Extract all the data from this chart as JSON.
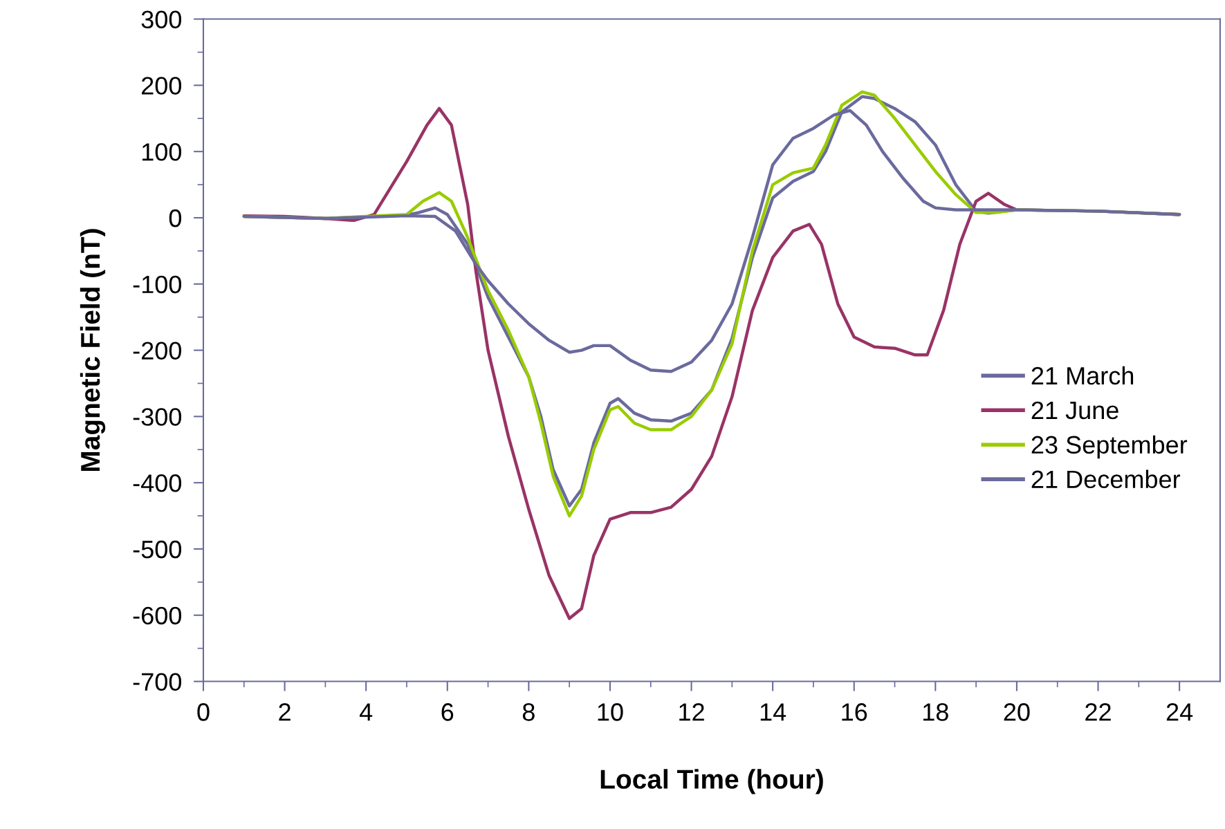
{
  "chart_data": {
    "type": "line",
    "xlabel": "Local Time (hour)",
    "ylabel": "Magnetic Field (nT)",
    "xlim": [
      0,
      25
    ],
    "xticks": [
      0,
      2,
      4,
      6,
      8,
      10,
      12,
      14,
      16,
      18,
      20,
      22,
      24
    ],
    "ylim": [
      -700,
      300
    ],
    "yticks": [
      -700,
      -600,
      -500,
      -400,
      -300,
      -200,
      -100,
      0,
      100,
      200,
      300
    ],
    "grid": false,
    "legend": "center right",
    "marker": "none",
    "line_style": "solid",
    "series": [
      {
        "name": "21 March",
        "color": "#6a6a9e",
        "x": [
          1,
          3,
          5,
          5.3,
          5.7,
          6,
          6.5,
          7,
          7.5,
          8,
          8.3,
          8.6,
          9,
          9.3,
          9.6,
          10,
          10.2,
          10.6,
          11,
          11.5,
          12,
          12.5,
          13,
          13.5,
          14,
          14.5,
          15,
          15.3,
          15.7,
          16.2,
          16.5,
          17,
          17.5,
          18,
          18.5,
          19,
          19.3,
          19.7,
          20,
          22,
          24
        ],
        "values": [
          2,
          -1,
          4,
          8,
          15,
          5,
          -40,
          -120,
          -180,
          -240,
          -300,
          -380,
          -435,
          -410,
          -340,
          -280,
          -273,
          -295,
          -305,
          -307,
          -295,
          -260,
          -182,
          -60,
          30,
          55,
          70,
          100,
          160,
          183,
          180,
          165,
          145,
          110,
          50,
          10,
          7,
          10,
          12,
          10,
          5
        ]
      },
      {
        "name": "21 June",
        "color": "#993366",
        "x": [
          1,
          2,
          3,
          3.7,
          4.2,
          5,
          5.5,
          5.8,
          6.1,
          6.5,
          6.7,
          7,
          7.5,
          8,
          8.5,
          9,
          9.3,
          9.6,
          10,
          10.5,
          11,
          11.5,
          12,
          12.5,
          13,
          13.5,
          14,
          14.5,
          14.9,
          15.2,
          15.6,
          16,
          16.5,
          17,
          17.5,
          17.8,
          18.2,
          18.6,
          19,
          19.3,
          19.7,
          20,
          22,
          24
        ],
        "values": [
          3,
          2,
          -1,
          -4,
          5,
          85,
          140,
          165,
          140,
          20,
          -80,
          -200,
          -330,
          -440,
          -540,
          -605,
          -590,
          -510,
          -455,
          -445,
          -445,
          -437,
          -410,
          -360,
          -270,
          -140,
          -60,
          -20,
          -10,
          -40,
          -130,
          -180,
          -195,
          -197,
          -207,
          -207,
          -140,
          -40,
          25,
          37,
          20,
          12,
          10,
          5
        ]
      },
      {
        "name": "23 September",
        "color": "#99cc00",
        "x": [
          1,
          3,
          5,
          5.4,
          5.8,
          6.1,
          6.5,
          7,
          7.5,
          8,
          8.3,
          8.6,
          9,
          9.3,
          9.6,
          10,
          10.2,
          10.6,
          11,
          11.5,
          12,
          12.5,
          13,
          13.5,
          14,
          14.5,
          15,
          15.3,
          15.7,
          16.2,
          16.5,
          17,
          17.5,
          18,
          18.5,
          19,
          19.5,
          20,
          22,
          24
        ],
        "values": [
          2,
          -1,
          5,
          25,
          38,
          25,
          -30,
          -110,
          -170,
          -240,
          -310,
          -390,
          -450,
          -420,
          -350,
          -290,
          -285,
          -310,
          -320,
          -320,
          -300,
          -260,
          -190,
          -50,
          50,
          68,
          75,
          110,
          170,
          190,
          185,
          150,
          110,
          70,
          35,
          8,
          8,
          12,
          10,
          5
        ]
      },
      {
        "name": "21 December",
        "color": "#6a6a9e",
        "x": [
          1,
          3,
          5,
          5.7,
          6.2,
          6.7,
          7,
          7.5,
          8,
          8.5,
          9,
          9.3,
          9.6,
          10,
          10.5,
          11,
          11.5,
          12,
          12.5,
          13,
          13.5,
          14,
          14.5,
          15,
          15.5,
          15.9,
          16.3,
          16.7,
          17.2,
          17.7,
          18,
          18.5,
          19,
          20,
          22,
          24
        ],
        "values": [
          2,
          -1,
          3,
          2,
          -20,
          -70,
          -95,
          -130,
          -160,
          -185,
          -203,
          -200,
          -193,
          -193,
          -215,
          -230,
          -232,
          -218,
          -185,
          -130,
          -30,
          80,
          120,
          135,
          155,
          162,
          140,
          100,
          60,
          25,
          15,
          12,
          12,
          12,
          10,
          5
        ]
      }
    ]
  }
}
